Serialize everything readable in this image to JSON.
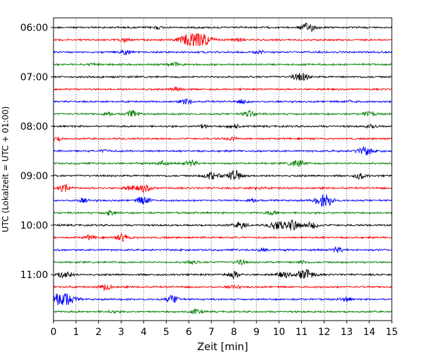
{
  "chart_data": {
    "type": "line",
    "title": "",
    "xlabel": "Zeit  [min]",
    "ylabel": "UTC (Lokalzeit = UTC + 01:00)",
    "xlim": [
      0,
      15
    ],
    "x_ticks": [
      "0",
      "1",
      "2",
      "3",
      "4",
      "5",
      "6",
      "7",
      "8",
      "9",
      "10",
      "11",
      "12",
      "13",
      "14",
      "15"
    ],
    "y_tick_labels": [
      "06:00",
      "07:00",
      "08:00",
      "09:00",
      "10:00",
      "11:00"
    ],
    "grid": "vertical dotted lines at each minute",
    "trace_interval_minutes": 15,
    "line_color_cycle": [
      "#000000",
      "#ff0000",
      "#0000ff",
      "#008000"
    ],
    "traces": [
      {
        "start": "06:00",
        "bursts": [
          {
            "t": 11.3,
            "a": 1.8
          },
          {
            "t": 4.6,
            "a": 0.6
          }
        ]
      },
      {
        "start": "06:15",
        "bursts": [
          {
            "t": 6.3,
            "a": 4.5
          },
          {
            "t": 3.2,
            "a": 0.8
          },
          {
            "t": 8.2,
            "a": 0.7
          }
        ]
      },
      {
        "start": "06:30",
        "bursts": [
          {
            "t": 3.2,
            "a": 1.0
          },
          {
            "t": 9.1,
            "a": 0.6
          }
        ]
      },
      {
        "start": "06:45",
        "bursts": [
          {
            "t": 5.3,
            "a": 0.9
          },
          {
            "t": 1.8,
            "a": 0.5
          }
        ]
      },
      {
        "start": "07:00",
        "bursts": [
          {
            "t": 11.1,
            "a": 1.2
          },
          {
            "t": 10.8,
            "a": 0.9
          }
        ]
      },
      {
        "start": "07:15",
        "bursts": [
          {
            "t": 5.5,
            "a": 0.8
          }
        ]
      },
      {
        "start": "07:30",
        "bursts": [
          {
            "t": 5.9,
            "a": 1.1
          },
          {
            "t": 8.4,
            "a": 0.9
          },
          {
            "t": 13.2,
            "a": 0.5
          }
        ]
      },
      {
        "start": "07:45",
        "bursts": [
          {
            "t": 3.5,
            "a": 1.4
          },
          {
            "t": 8.7,
            "a": 1.2
          },
          {
            "t": 14.0,
            "a": 1.0
          },
          {
            "t": 2.4,
            "a": 0.8
          }
        ]
      },
      {
        "start": "08:00",
        "bursts": [
          {
            "t": 8.0,
            "a": 0.9
          },
          {
            "t": 6.6,
            "a": 0.7
          },
          {
            "t": 14.1,
            "a": 0.6
          }
        ]
      },
      {
        "start": "08:15",
        "bursts": [
          {
            "t": 0.2,
            "a": 0.7
          },
          {
            "t": 7.9,
            "a": 0.6
          }
        ]
      },
      {
        "start": "08:30",
        "bursts": [
          {
            "t": 13.8,
            "a": 1.8
          },
          {
            "t": 2.3,
            "a": 0.5
          }
        ]
      },
      {
        "start": "08:45",
        "bursts": [
          {
            "t": 10.8,
            "a": 1.6
          },
          {
            "t": 6.1,
            "a": 1.2
          },
          {
            "t": 4.8,
            "a": 0.9
          }
        ]
      },
      {
        "start": "09:00",
        "bursts": [
          {
            "t": 8.0,
            "a": 2.2
          },
          {
            "t": 7.0,
            "a": 1.5
          },
          {
            "t": 13.6,
            "a": 1.2
          }
        ]
      },
      {
        "start": "09:15",
        "bursts": [
          {
            "t": 0.5,
            "a": 1.3
          },
          {
            "t": 4.0,
            "a": 1.5
          },
          {
            "t": 3.4,
            "a": 0.8
          },
          {
            "t": 9.0,
            "a": 0.7
          }
        ]
      },
      {
        "start": "09:30",
        "bursts": [
          {
            "t": 12.0,
            "a": 2.6
          },
          {
            "t": 4.0,
            "a": 1.6
          },
          {
            "t": 1.3,
            "a": 0.8
          },
          {
            "t": 8.8,
            "a": 0.7
          }
        ]
      },
      {
        "start": "09:45",
        "bursts": [
          {
            "t": 2.5,
            "a": 1.0
          },
          {
            "t": 9.7,
            "a": 0.8
          }
        ]
      },
      {
        "start": "10:00",
        "bursts": [
          {
            "t": 10.6,
            "a": 2.2
          },
          {
            "t": 8.3,
            "a": 1.4
          },
          {
            "t": 9.9,
            "a": 1.8
          },
          {
            "t": 11.5,
            "a": 1.2
          }
        ]
      },
      {
        "start": "10:15",
        "bursts": [
          {
            "t": 3.1,
            "a": 1.5
          },
          {
            "t": 1.6,
            "a": 0.8
          }
        ]
      },
      {
        "start": "10:30",
        "bursts": [
          {
            "t": 12.6,
            "a": 1.1
          },
          {
            "t": 9.3,
            "a": 0.7
          }
        ]
      },
      {
        "start": "10:45",
        "bursts": [
          {
            "t": 6.1,
            "a": 0.7
          },
          {
            "t": 8.3,
            "a": 0.9
          },
          {
            "t": 11.0,
            "a": 0.6
          }
        ]
      },
      {
        "start": "11:00",
        "bursts": [
          {
            "t": 11.2,
            "a": 2.3
          },
          {
            "t": 0.5,
            "a": 1.6
          },
          {
            "t": 8.0,
            "a": 1.4
          },
          {
            "t": 10.2,
            "a": 1.2
          }
        ]
      },
      {
        "start": "11:15",
        "bursts": [
          {
            "t": 2.3,
            "a": 1.2
          },
          {
            "t": 8.0,
            "a": 0.6
          }
        ]
      },
      {
        "start": "11:30",
        "bursts": [
          {
            "t": 0.4,
            "a": 3.6
          },
          {
            "t": 5.3,
            "a": 1.6
          },
          {
            "t": 13.0,
            "a": 0.8
          }
        ]
      },
      {
        "start": "11:45",
        "bursts": [
          {
            "t": 6.3,
            "a": 1.0
          },
          {
            "t": 2.6,
            "a": 0.5
          }
        ]
      }
    ]
  }
}
